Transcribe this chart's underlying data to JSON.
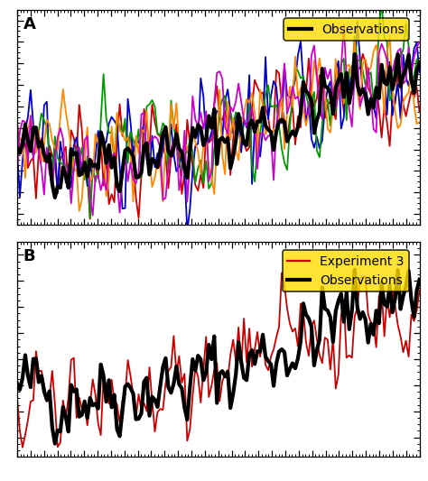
{
  "n_points": 150,
  "seed": 42,
  "panel_a_label": "A",
  "panel_b_label": "B",
  "obs_label": "Observations",
  "exp3_label": "Experiment 3",
  "obs_color": "#000000",
  "obs_linewidth": 3.0,
  "exp3_color": "#cc0000",
  "model_colors": [
    "#cc0000",
    "#0000cc",
    "#009900",
    "#ff8800",
    "#cc00cc"
  ],
  "model_linewidth": 1.3,
  "legend_facecolor": "#ffdd00",
  "legend_edgecolor": "#000000",
  "background_color": "#ffffff",
  "tick_direction": "in",
  "panel_label_fontsize": 13,
  "legend_fontsize": 10,
  "ylim_a": [
    -0.7,
    1.3
  ],
  "ylim_b": [
    -0.55,
    1.1
  ]
}
